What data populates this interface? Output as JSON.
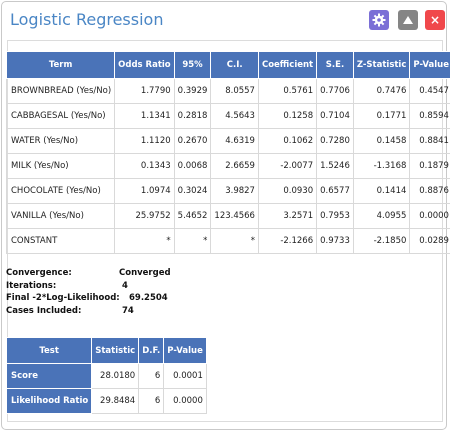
{
  "window": {
    "title": "Logistic Regression",
    "icons": {
      "settings": "gear-icon",
      "collapse": "triangle-up-icon",
      "close": "close-icon"
    },
    "close_glyph": "×"
  },
  "main_table": {
    "headers": [
      "Term",
      "Odds Ratio",
      "95%",
      "C.I.",
      "Coefficient",
      "S.E.",
      "Z-Statistic",
      "P-Value"
    ],
    "rows": [
      [
        "BROWNBREAD (Yes/No)",
        "1.7790",
        "0.3929",
        "8.0557",
        "0.5761",
        "0.7706",
        "0.7476",
        "0.4547"
      ],
      [
        "CABBAGESAL (Yes/No)",
        "1.1341",
        "0.2818",
        "4.5643",
        "0.1258",
        "0.7104",
        "0.1771",
        "0.8594"
      ],
      [
        "WATER (Yes/No)",
        "1.1120",
        "0.2670",
        "4.6319",
        "0.1062",
        "0.7280",
        "0.1458",
        "0.8841"
      ],
      [
        "MILK (Yes/No)",
        "0.1343",
        "0.0068",
        "2.6659",
        "-2.0077",
        "1.5246",
        "-1.3168",
        "0.1879"
      ],
      [
        "CHOCOLATE (Yes/No)",
        "1.0974",
        "0.3024",
        "3.9827",
        "0.0930",
        "0.6577",
        "0.1414",
        "0.8876"
      ],
      [
        "VANILLA (Yes/No)",
        "25.9752",
        "5.4652",
        "123.4566",
        "3.2571",
        "0.7953",
        "4.0955",
        "0.0000"
      ],
      [
        "CONSTANT",
        "*",
        "*",
        "*",
        "-2.1266",
        "0.9733",
        "-2.1850",
        "0.0289"
      ]
    ]
  },
  "summary": {
    "convergence_label": "Convergence:",
    "convergence_value": "Converged",
    "iterations_label": "Iterations:",
    "iterations_value": "4",
    "loglik_label": "Final -2*Log-Likelihood:",
    "loglik_value": "69.2504",
    "cases_label": "Cases Included:",
    "cases_value": "74"
  },
  "test_table": {
    "headers": [
      "Test",
      "Statistic",
      "D.F.",
      "P-Value"
    ],
    "rows": [
      [
        "Score",
        "28.0180",
        "6",
        "0.0001"
      ],
      [
        "Likelihood Ratio",
        "29.8484",
        "6",
        "0.0000"
      ]
    ]
  },
  "colors": {
    "title": "#4a86c5",
    "header_bg": "#4a73b8",
    "gear_button": "#7b6fd6",
    "collapse_button": "#858585",
    "close_button": "#f0484b"
  }
}
